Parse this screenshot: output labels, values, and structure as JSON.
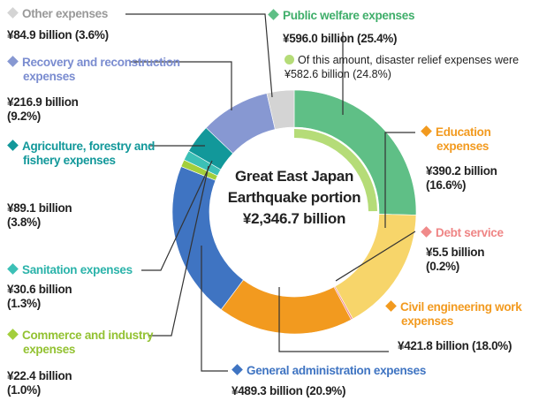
{
  "chart_data": {
    "type": "donut",
    "center_label": [
      "Great East Japan",
      "Earthquake portion",
      "¥2,346.7 billion"
    ],
    "categories": [
      "Public welfare expenses",
      "Education expenses",
      "Debt service",
      "Civil engineering work expenses",
      "General administration expenses",
      "Commerce and industry expenses",
      "Sanitation expenses",
      "Agriculture, forestry and fishery expenses",
      "Recovery and reconstruction expenses",
      "Other expenses"
    ],
    "values": [
      596.0,
      390.2,
      5.5,
      421.8,
      489.3,
      22.4,
      30.6,
      89.1,
      216.9,
      84.9
    ],
    "value_labels": [
      "¥596.0 billion (25.4%)",
      "¥390.2 billion (16.6%)",
      "¥5.5 billion (0.2%)",
      "¥421.8 billion (18.0%)",
      "¥489.3 billion (20.9%)",
      "¥22.4 billion (1.0%)",
      "¥30.6 billion (1.3%)",
      "¥89.1 billion (3.8%)",
      "¥216.9 billion (9.2%)",
      "¥84.9 billion (3.6%)"
    ],
    "colors": [
      "#5fbf86",
      "#f7d56a",
      "#f08a8a",
      "#f29a1f",
      "#3f74c2",
      "#a3cf3c",
      "#3cc0b6",
      "#12989a",
      "#8798d2",
      "#d4d4d4"
    ],
    "label_colors": [
      "#3fae6a",
      "#f29a1f",
      "#ef8585",
      "#f29a1f",
      "#3f74c2",
      "#93c232",
      "#2bb3aa",
      "#12989a",
      "#7a8cd0",
      "#999999"
    ],
    "inner": {
      "label": "Of this amount, disaster relief expenses were ¥582.6 billion (24.8%)",
      "value": 582.6,
      "color": "#b5dc78"
    }
  }
}
